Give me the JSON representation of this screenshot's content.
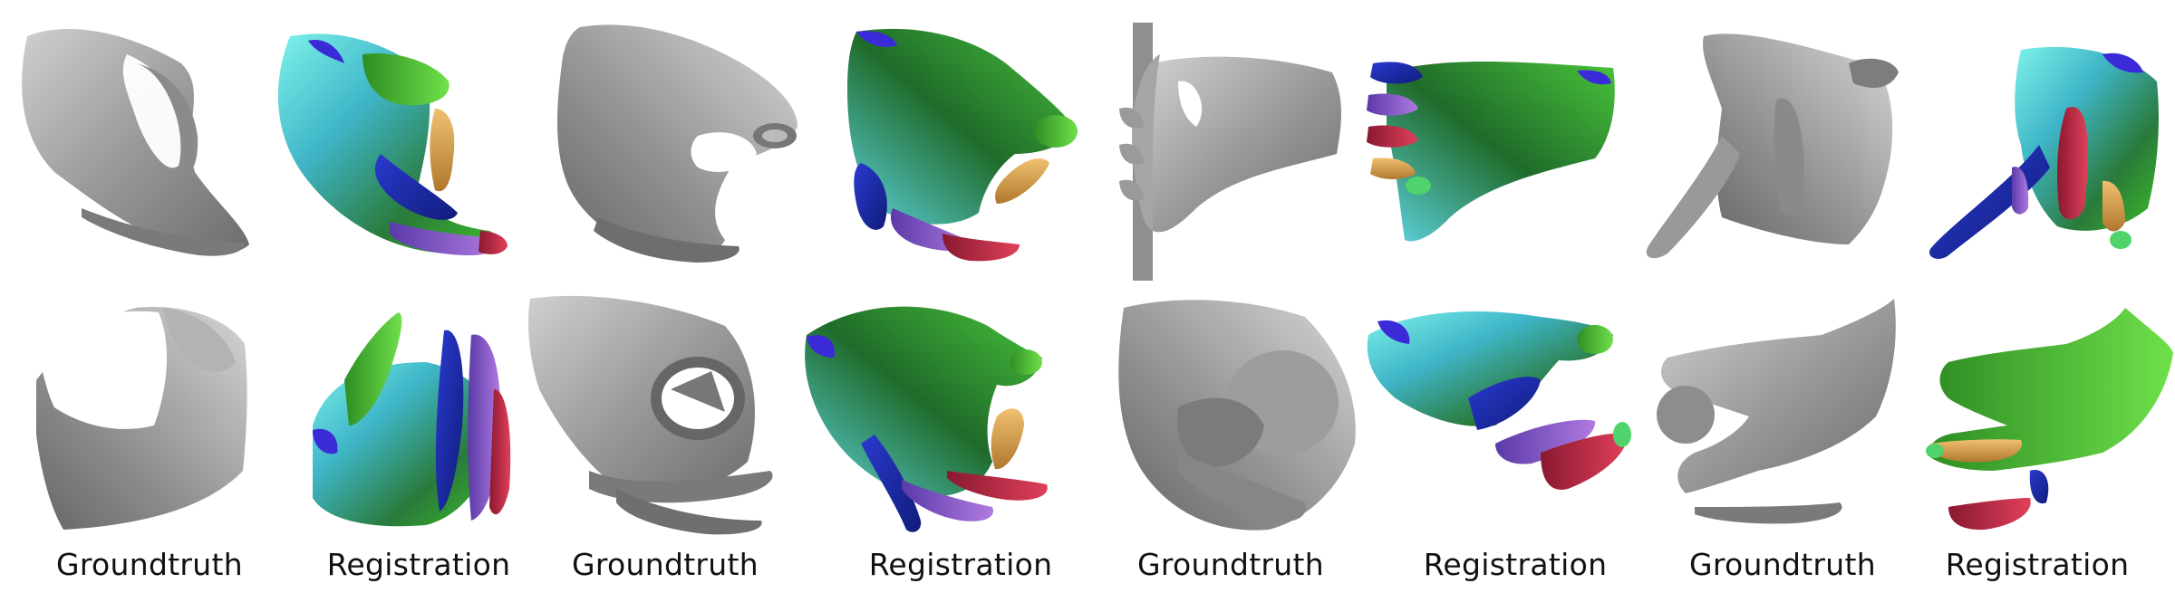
{
  "figure": {
    "captions": [
      "Groundtruth",
      "Registration",
      "Groundtruth",
      "Registration",
      "Groundtruth",
      "Registration",
      "Groundtruth",
      "Registration"
    ],
    "panels": [
      {
        "row": 1,
        "col": 1,
        "kind": "groundtruth",
        "colors": [
          "#6d6d6d",
          "#cfcfcf"
        ]
      },
      {
        "row": 1,
        "col": 2,
        "kind": "registration",
        "colors": [
          "#6ee8e6",
          "#3a47c4",
          "#3bbd2a",
          "#e2a54a",
          "#8d5ad0",
          "#d8344c"
        ]
      },
      {
        "row": 1,
        "col": 3,
        "kind": "groundtruth",
        "colors": [
          "#6d6d6d",
          "#cfcfcf"
        ]
      },
      {
        "row": 1,
        "col": 4,
        "kind": "registration",
        "colors": [
          "#6ee8e6",
          "#1c2fa8",
          "#35a82a",
          "#e2a54a",
          "#8d5ad0",
          "#d8344c"
        ]
      },
      {
        "row": 1,
        "col": 5,
        "kind": "groundtruth",
        "colors": [
          "#6d6d6d",
          "#cfcfcf"
        ]
      },
      {
        "row": 1,
        "col": 6,
        "kind": "registration",
        "colors": [
          "#6ee8e6",
          "#1c2fa8",
          "#35a82a",
          "#e2a54a",
          "#8d5ad0",
          "#d8344c"
        ]
      },
      {
        "row": 1,
        "col": 7,
        "kind": "groundtruth",
        "colors": [
          "#6d6d6d",
          "#cfcfcf"
        ]
      },
      {
        "row": 1,
        "col": 8,
        "kind": "registration",
        "colors": [
          "#6ee8e6",
          "#1c2fa8",
          "#35a82a",
          "#e2a54a",
          "#8d5ad0",
          "#d8344c"
        ]
      },
      {
        "row": 2,
        "col": 1,
        "kind": "groundtruth",
        "colors": [
          "#6d6d6d",
          "#cfcfcf"
        ]
      },
      {
        "row": 2,
        "col": 2,
        "kind": "registration",
        "colors": [
          "#6ee8e6",
          "#1c2fa8",
          "#35a82a",
          "#e2a54a",
          "#8d5ad0",
          "#d8344c"
        ]
      },
      {
        "row": 2,
        "col": 3,
        "kind": "groundtruth",
        "colors": [
          "#6d6d6d",
          "#cfcfcf"
        ]
      },
      {
        "row": 2,
        "col": 4,
        "kind": "registration",
        "colors": [
          "#6ee8e6",
          "#1c2fa8",
          "#35a82a",
          "#e2a54a",
          "#8d5ad0",
          "#d8344c"
        ]
      },
      {
        "row": 2,
        "col": 5,
        "kind": "groundtruth",
        "colors": [
          "#6d6d6d",
          "#cfcfcf"
        ]
      },
      {
        "row": 2,
        "col": 6,
        "kind": "registration",
        "colors": [
          "#6ee8e6",
          "#1c2fa8",
          "#35a82a",
          "#e2a54a",
          "#8d5ad0",
          "#d8344c"
        ]
      },
      {
        "row": 2,
        "col": 7,
        "kind": "groundtruth",
        "colors": [
          "#6d6d6d",
          "#cfcfcf"
        ]
      },
      {
        "row": 2,
        "col": 8,
        "kind": "registration",
        "colors": [
          "#6ee8e6",
          "#1c2fa8",
          "#35a82a",
          "#e2a54a",
          "#8d5ad0",
          "#d8344c"
        ]
      }
    ]
  }
}
